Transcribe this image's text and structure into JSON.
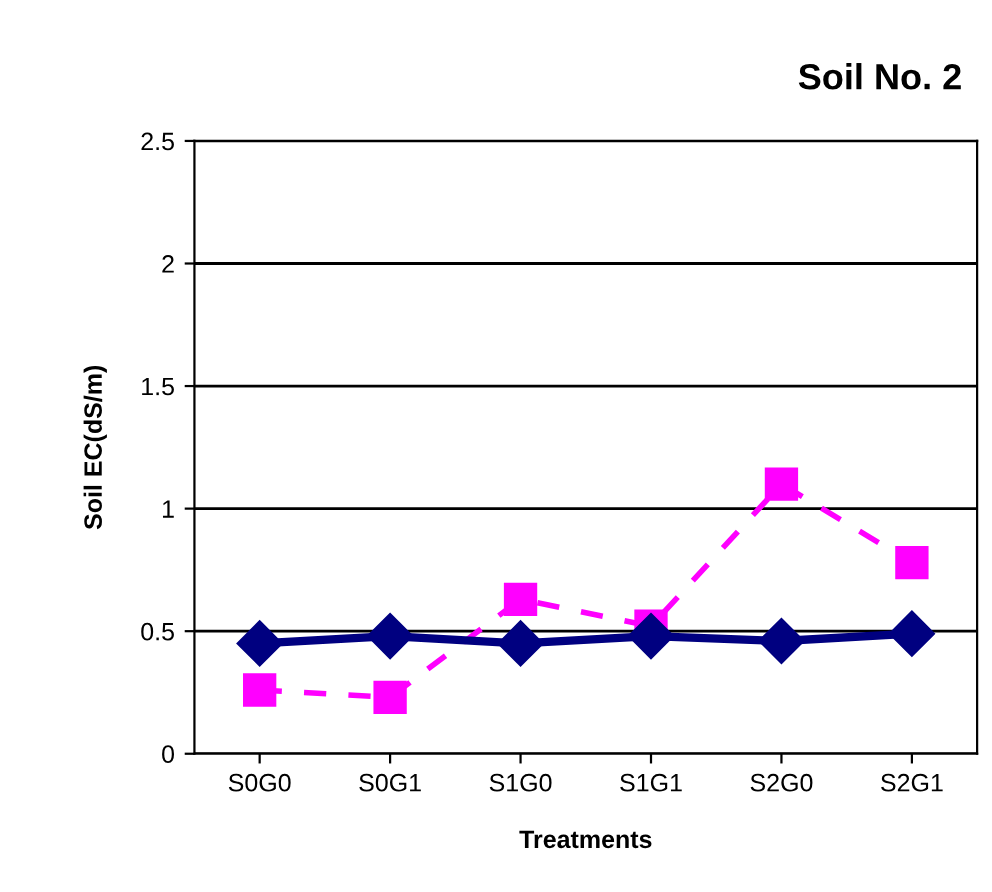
{
  "chart_data": {
    "type": "line",
    "title": "Soil No. 2",
    "xlabel": "Treatments",
    "ylabel": "Soil EC(dS/m)",
    "categories": [
      "S0G0",
      "S0G1",
      "S1G0",
      "S1G1",
      "S2G0",
      "S2G1"
    ],
    "series": [
      {
        "color": "#000080",
        "values": [
          0.45,
          0.48,
          0.45,
          0.48,
          0.46,
          0.49
        ],
        "marker": "diamond",
        "line_style": "solid"
      },
      {
        "color": "#ff00ff",
        "values": [
          0.26,
          0.23,
          0.63,
          0.52,
          1.1,
          0.78
        ],
        "marker": "square",
        "line_style": "dashed"
      }
    ],
    "ylim": [
      0,
      2.5
    ],
    "yticks": [
      0,
      0.5,
      1,
      1.5,
      2,
      2.5
    ],
    "grid": "y",
    "legend": false
  }
}
